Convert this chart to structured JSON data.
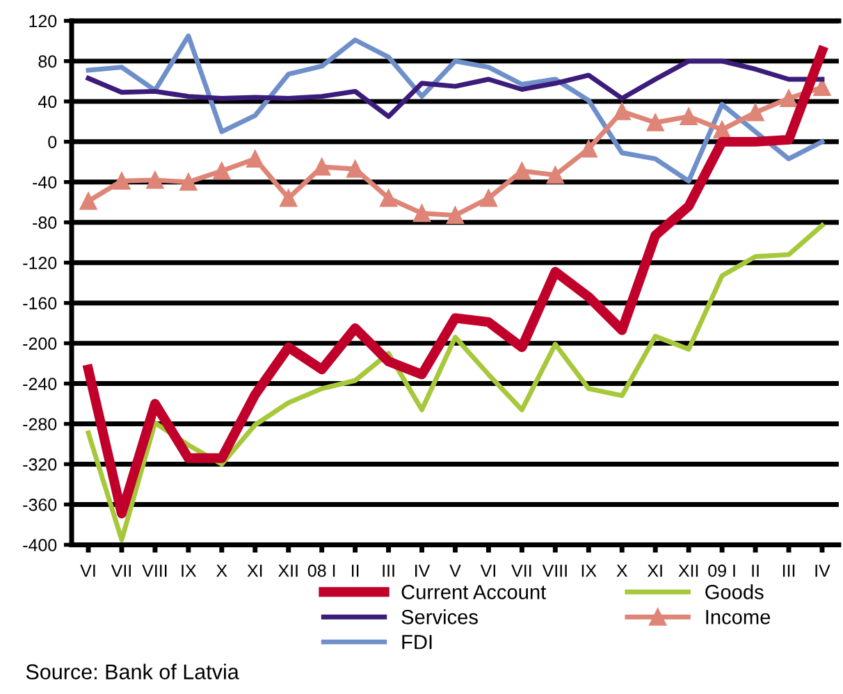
{
  "chart_data": {
    "type": "line",
    "categories": [
      "VI",
      "VII",
      "VIII",
      "IX",
      "X",
      "XI",
      "XII",
      "08 I",
      "II",
      "III",
      "IV",
      "V",
      "VI",
      "VII",
      "VIII",
      "IX",
      "X",
      "XI",
      "XII",
      "09 I",
      "II",
      "III",
      "IV"
    ],
    "series": [
      {
        "name": "Current Account",
        "color": "#c0002a",
        "values": [
          -226,
          -369,
          -260,
          -314,
          -314,
          -251,
          -204,
          -226,
          -185,
          -218,
          -231,
          -175,
          -179,
          -204,
          -129,
          -154,
          -187,
          -93,
          -64,
          0,
          0,
          2,
          90
        ]
      },
      {
        "name": "Goods",
        "color": "#a6c83a",
        "values": [
          -289,
          -395,
          -279,
          -301,
          -320,
          -281,
          -259,
          -245,
          -237,
          -210,
          -266,
          -194,
          -231,
          -266,
          -201,
          -245,
          -252,
          -193,
          -206,
          -133,
          -114,
          -112,
          -83
        ]
      },
      {
        "name": "Services",
        "color": "#3b1c7a",
        "values": [
          63,
          49,
          50,
          45,
          43,
          44,
          43,
          45,
          50,
          25,
          58,
          55,
          62,
          52,
          58,
          66,
          43,
          62,
          80,
          80,
          72,
          62,
          62
        ]
      },
      {
        "name": "Income",
        "color": "#de8577",
        "marker": "triangle",
        "values": [
          -59,
          -39,
          -38,
          -40,
          -29,
          -17,
          -56,
          -25,
          -27,
          -56,
          -71,
          -73,
          -56,
          -29,
          -33,
          -7,
          30,
          19,
          25,
          12,
          29,
          43,
          54
        ]
      },
      {
        "name": "FDI",
        "color": "#6f8fcb",
        "values": [
          71,
          74,
          51,
          105,
          10,
          26,
          67,
          75,
          101,
          84,
          45,
          80,
          74,
          57,
          62,
          41,
          -11,
          -17,
          -39,
          37,
          10,
          -17,
          0
        ]
      }
    ],
    "ylim": [
      -400,
      120
    ],
    "yticks": [
      -400,
      -360,
      -320,
      -280,
      -240,
      -200,
      -160,
      -120,
      -80,
      -40,
      0,
      40,
      80,
      120
    ],
    "grid": "y",
    "legend": "bottom",
    "annotations": [
      "Source: Bank of Latvia"
    ]
  }
}
